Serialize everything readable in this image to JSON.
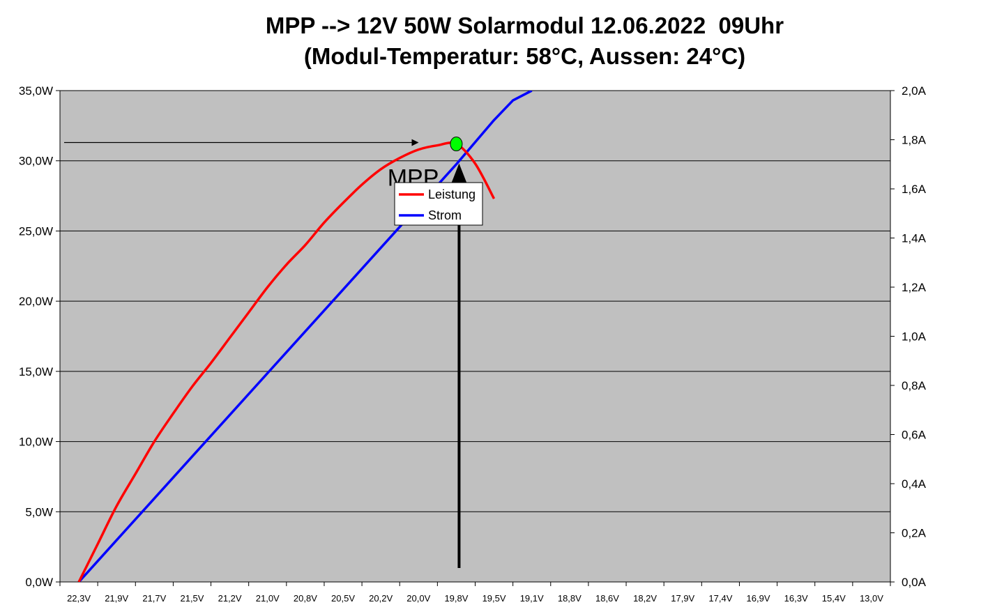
{
  "chart_data": {
    "type": "line",
    "title": "MPP --> 12V 50W Solarmodul 12.06.2022  09Uhr",
    "subtitle": "(Modul-Temperatur: 58°C, Aussen: 24°C)",
    "categories": [
      "22,3V",
      "21,9V",
      "21,7V",
      "21,5V",
      "21,2V",
      "21,0V",
      "20,8V",
      "20,5V",
      "20,2V",
      "20,0V",
      "19,8V",
      "19,5V",
      "19,1V",
      "18,8V",
      "18,6V",
      "18,2V",
      "17,9V",
      "17,4V",
      "16,9V",
      "16,3V",
      "15,4V",
      "13,0V"
    ],
    "y_left": {
      "ticks": [
        0,
        5,
        10,
        15,
        20,
        25,
        30,
        35
      ],
      "tick_labels": [
        "0,0W",
        "5,0W",
        "10,0W",
        "15,0W",
        "20,0W",
        "25,0W",
        "30,0W",
        "35,0W"
      ],
      "ylim": [
        0,
        35
      ]
    },
    "y_right": {
      "ticks": [
        0,
        0.2,
        0.4,
        0.6,
        0.8,
        1.0,
        1.2,
        1.4,
        1.6,
        1.8,
        2.0
      ],
      "tick_labels": [
        "0,0A",
        "0,2A",
        "0,4A",
        "0,6A",
        "0,8A",
        "1,0A",
        "1,2A",
        "1,4A",
        "1,6A",
        "1,8A",
        "2,0A"
      ],
      "ylim": [
        0,
        2.0
      ]
    },
    "series": [
      {
        "name": "Leistung",
        "axis": "left",
        "color": "#ff0000",
        "points": [
          [
            0,
            0
          ],
          [
            0.5,
            2.7
          ],
          [
            1,
            5.4
          ],
          [
            1.5,
            7.7
          ],
          [
            2,
            10.0
          ],
          [
            2.5,
            12.0
          ],
          [
            3,
            13.9
          ],
          [
            3.5,
            15.6
          ],
          [
            4,
            17.4
          ],
          [
            4.5,
            19.2
          ],
          [
            5,
            21.0
          ],
          [
            5.5,
            22.6
          ],
          [
            6,
            24.0
          ],
          [
            6.5,
            25.6
          ],
          [
            7,
            27.0
          ],
          [
            7.5,
            28.3
          ],
          [
            8,
            29.4
          ],
          [
            8.5,
            30.2
          ],
          [
            9,
            30.8
          ],
          [
            9.5,
            31.1
          ],
          [
            10,
            31.2
          ],
          [
            10.5,
            29.8
          ],
          [
            11,
            27.3
          ]
        ]
      },
      {
        "name": "Strom",
        "axis": "right",
        "color": "#0000ff",
        "points": [
          [
            0,
            0
          ],
          [
            1,
            0.17
          ],
          [
            2,
            0.34
          ],
          [
            3,
            0.51
          ],
          [
            4,
            0.68
          ],
          [
            5,
            0.85
          ],
          [
            6,
            1.02
          ],
          [
            7,
            1.19
          ],
          [
            8,
            1.36
          ],
          [
            9,
            1.53
          ],
          [
            10,
            1.7
          ],
          [
            10.5,
            1.79
          ],
          [
            11,
            1.88
          ],
          [
            11.5,
            1.96
          ],
          [
            12,
            2.0
          ]
        ]
      }
    ],
    "legend": {
      "position": "upper-left-center",
      "entries": [
        "Leistung",
        "Strom"
      ]
    },
    "annotations": {
      "mpp_label": "MPP",
      "mpp_point": {
        "x": 10,
        "y": 31.2,
        "color": "#00ff00"
      },
      "horizontal_arrow_y": 31.3
    },
    "grid": true,
    "plot_background": "#c0c0c0"
  }
}
